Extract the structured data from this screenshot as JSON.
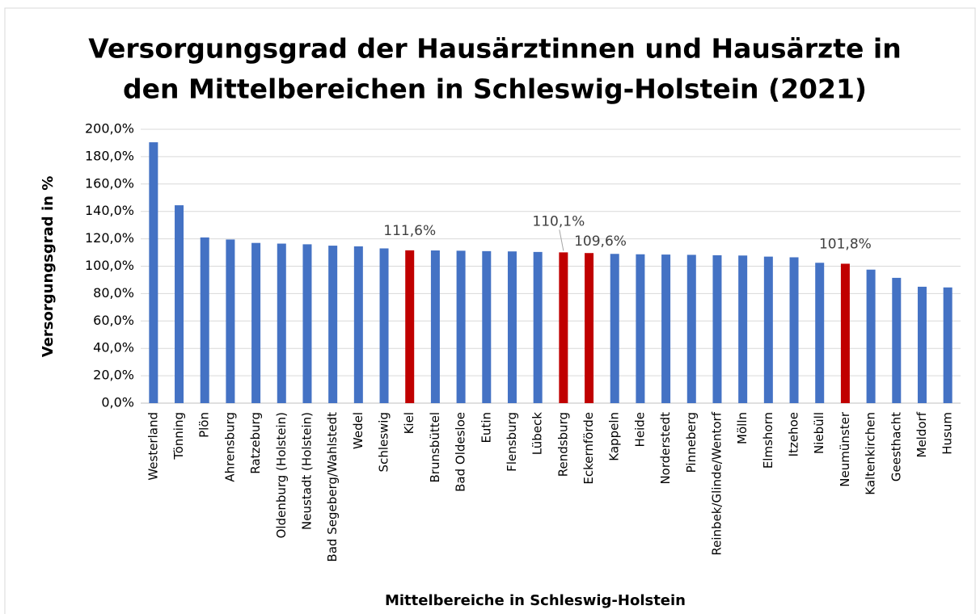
{
  "chart_data": {
    "type": "bar",
    "title": [
      "Versorgungsgrad der Hausärztinnen und Hausärzte in",
      "den Mittelbereichen in Schleswig-Holstein (2021)"
    ],
    "xlabel": "Mittelbereiche in Schleswig-Holstein",
    "ylabel": "Versorgungsgrad in %",
    "categories": [
      "Westerland",
      "Tönning",
      "Plön",
      "Ahrensburg",
      "Ratzeburg",
      "Oldenburg (Holstein)",
      "Neustadt (Holstein)",
      "Bad Segeberg/Wahlstedt",
      "Wedel",
      "Schleswig",
      "Kiel",
      "Brunsbüttel",
      "Bad Oldesloe",
      "Eutin",
      "Flensburg",
      "Lübeck",
      "Rendsburg",
      "Eckernförde",
      "Kappeln",
      "Heide",
      "Norderstedt",
      "Pinneberg",
      "Reinbek/Glinde/Wentorf",
      "Mölln",
      "Elmshorn",
      "Itzehoe",
      "Niebüll",
      "Neumünster",
      "Kaltenkirchen",
      "Geesthacht",
      "Meldorf",
      "Husum"
    ],
    "values": [
      190.5,
      144.5,
      121,
      119.5,
      117,
      116.5,
      116,
      115,
      114.5,
      113,
      111.6,
      111.5,
      111.3,
      111,
      110.8,
      110.4,
      110.1,
      109.6,
      109,
      108.7,
      108.5,
      108.3,
      108,
      107.8,
      107,
      106.5,
      102.5,
      101.8,
      97.5,
      91.5,
      85,
      84.5
    ],
    "value_labels": [
      null,
      null,
      null,
      null,
      null,
      null,
      null,
      null,
      null,
      null,
      "111,6%",
      null,
      null,
      null,
      null,
      null,
      "110,1%",
      "109,6%",
      null,
      null,
      null,
      null,
      null,
      null,
      null,
      null,
      null,
      "101,8%",
      null,
      null,
      null,
      null
    ],
    "colors": [
      "#4472c4",
      "#4472c4",
      "#4472c4",
      "#4472c4",
      "#4472c4",
      "#4472c4",
      "#4472c4",
      "#4472c4",
      "#4472c4",
      "#4472c4",
      "#c00000",
      "#4472c4",
      "#4472c4",
      "#4472c4",
      "#4472c4",
      "#4472c4",
      "#c00000",
      "#c00000",
      "#4472c4",
      "#4472c4",
      "#4472c4",
      "#4472c4",
      "#4472c4",
      "#4472c4",
      "#4472c4",
      "#4472c4",
      "#4472c4",
      "#c00000",
      "#4472c4",
      "#4472c4",
      "#4472c4",
      "#4472c4"
    ],
    "ylim": [
      0,
      200
    ],
    "yticks": [
      {
        "value": 0,
        "label": "0,0%"
      },
      {
        "value": 20,
        "label": "20,0%"
      },
      {
        "value": 40,
        "label": "40,0%"
      },
      {
        "value": 60,
        "label": "60,0%"
      },
      {
        "value": 80,
        "label": "80,0%"
      },
      {
        "value": 100,
        "label": "100,0%"
      },
      {
        "value": 120,
        "label": "120,0%"
      },
      {
        "value": 140,
        "label": "140,0%"
      },
      {
        "value": 160,
        "label": "160,0%"
      },
      {
        "value": 180,
        "label": "180,0%"
      },
      {
        "value": 200,
        "label": "200,0%"
      }
    ],
    "grid": true
  }
}
